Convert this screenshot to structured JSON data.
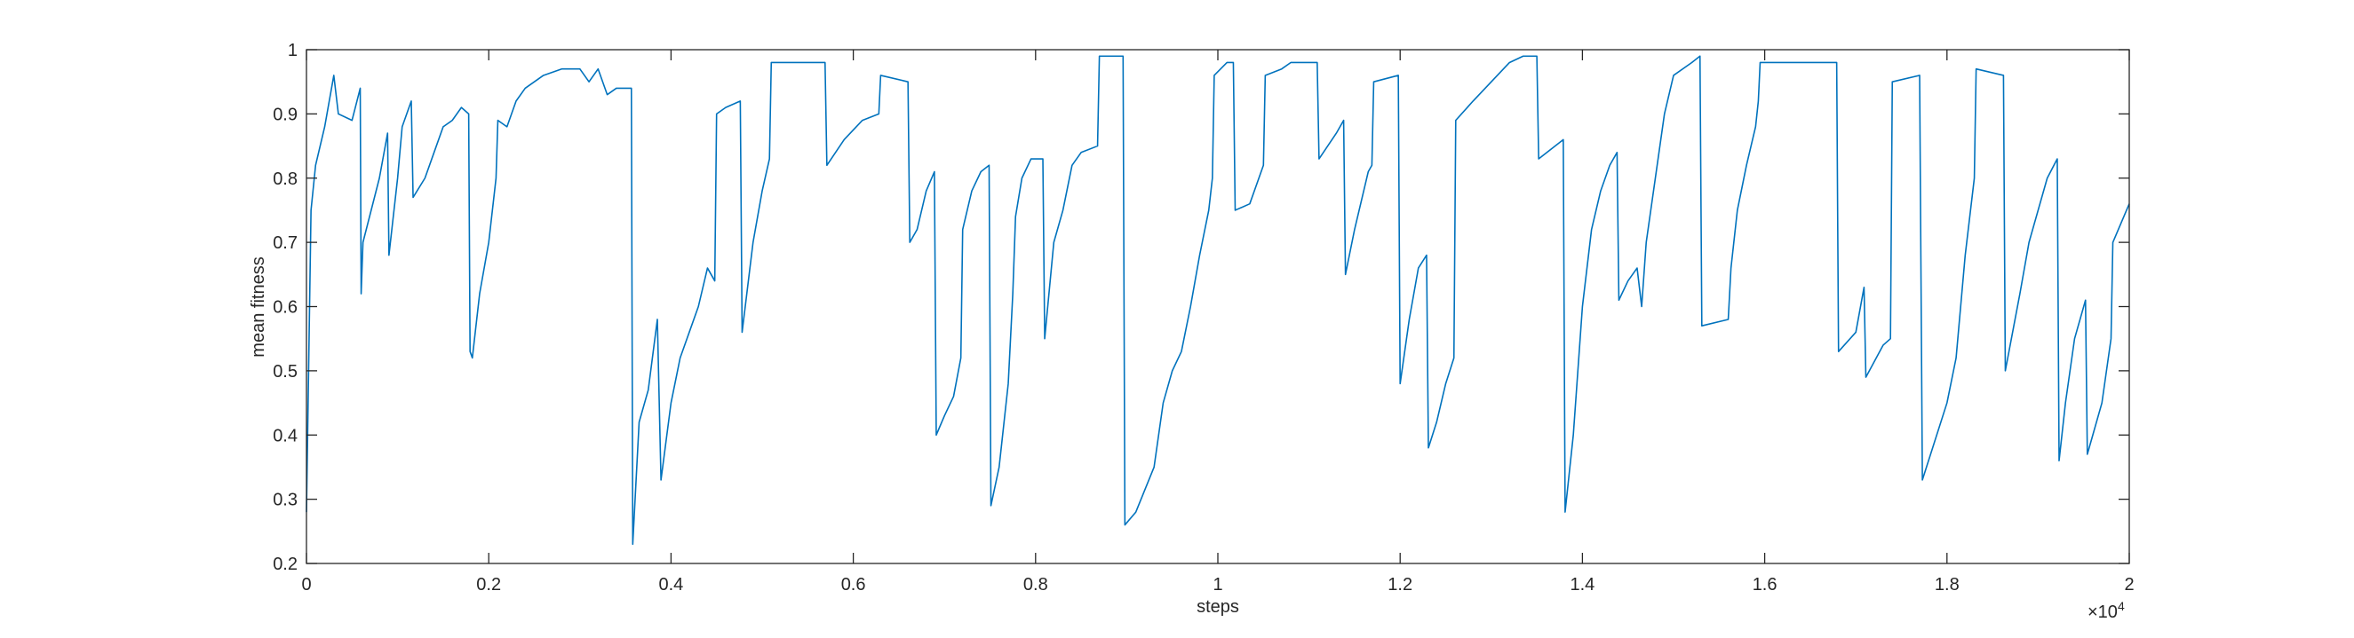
{
  "chart_data": {
    "type": "line",
    "x_label": "steps",
    "y_label": "mean fitness",
    "x_multiplier": {
      "base": "×10",
      "exponent": "4"
    },
    "xlim": [
      0,
      20000
    ],
    "ylim": [
      0.2,
      1
    ],
    "xticks": [
      {
        "value": 0,
        "label": "0"
      },
      {
        "value": 2000,
        "label": "0.2"
      },
      {
        "value": 4000,
        "label": "0.4"
      },
      {
        "value": 6000,
        "label": "0.6"
      },
      {
        "value": 8000,
        "label": "0.8"
      },
      {
        "value": 10000,
        "label": "1"
      },
      {
        "value": 12000,
        "label": "1.2"
      },
      {
        "value": 14000,
        "label": "1.4"
      },
      {
        "value": 16000,
        "label": "1.6"
      },
      {
        "value": 18000,
        "label": "1.8"
      },
      {
        "value": 20000,
        "label": "2"
      }
    ],
    "yticks": [
      0.2,
      0.3,
      0.4,
      0.5,
      0.6,
      0.7,
      0.8,
      0.9,
      1
    ],
    "grid": false,
    "x": [
      0,
      50,
      100,
      200,
      300,
      350,
      500,
      590,
      600,
      620,
      800,
      890,
      905,
      1000,
      1050,
      1150,
      1170,
      1300,
      1400,
      1500,
      1600,
      1700,
      1780,
      1795,
      1820,
      1900,
      2000,
      2080,
      2100,
      2200,
      2300,
      2400,
      2600,
      2800,
      3000,
      3100,
      3200,
      3300,
      3400,
      3565,
      3580,
      3650,
      3750,
      3850,
      3890,
      4000,
      4100,
      4200,
      4300,
      4400,
      4480,
      4500,
      4600,
      4760,
      4780,
      4900,
      5000,
      5080,
      5100,
      5300,
      5500,
      5690,
      5710,
      5900,
      6100,
      6280,
      6300,
      6600,
      6620,
      6700,
      6800,
      6890,
      6910,
      7000,
      7100,
      7180,
      7200,
      7300,
      7400,
      7490,
      7510,
      7600,
      7700,
      7750,
      7780,
      7850,
      7950,
      8080,
      8100,
      8200,
      8300,
      8400,
      8500,
      8680,
      8700,
      8960,
      8980,
      9100,
      9300,
      9400,
      9500,
      9600,
      9700,
      9800,
      9900,
      9940,
      9960,
      10100,
      10170,
      10190,
      10350,
      10450,
      10500,
      10520,
      10700,
      10800,
      11090,
      11110,
      11300,
      11380,
      11400,
      11500,
      11650,
      11690,
      11710,
      11980,
      12000,
      12100,
      12200,
      12290,
      12310,
      12400,
      12500,
      12590,
      12610,
      12800,
      13000,
      13200,
      13350,
      13500,
      13520,
      13790,
      13810,
      13900,
      14000,
      14100,
      14200,
      14300,
      14380,
      14400,
      14500,
      14600,
      14650,
      14700,
      14800,
      14900,
      15000,
      15200,
      15290,
      15310,
      15600,
      15630,
      15700,
      15800,
      15900,
      15930,
      15950,
      16200,
      16500,
      16790,
      16810,
      17000,
      17090,
      17110,
      17300,
      17380,
      17400,
      17700,
      17730,
      18000,
      18100,
      18200,
      18300,
      18320,
      18620,
      18640,
      18800,
      18900,
      19000,
      19100,
      19210,
      19230,
      19300,
      19400,
      19520,
      19540,
      19600,
      19700,
      19800,
      19820,
      20000
    ],
    "series": [
      {
        "color": "#0072bd",
        "values": [
          0.28,
          0.75,
          0.82,
          0.88,
          0.96,
          0.9,
          0.89,
          0.94,
          0.62,
          0.7,
          0.8,
          0.87,
          0.68,
          0.8,
          0.88,
          0.92,
          0.77,
          0.8,
          0.84,
          0.88,
          0.89,
          0.91,
          0.9,
          0.53,
          0.52,
          0.62,
          0.7,
          0.8,
          0.89,
          0.88,
          0.92,
          0.94,
          0.96,
          0.97,
          0.97,
          0.95,
          0.97,
          0.93,
          0.94,
          0.94,
          0.23,
          0.42,
          0.47,
          0.58,
          0.33,
          0.45,
          0.52,
          0.56,
          0.6,
          0.66,
          0.64,
          0.9,
          0.91,
          0.92,
          0.56,
          0.7,
          0.78,
          0.83,
          0.98,
          0.98,
          0.98,
          0.98,
          0.82,
          0.86,
          0.89,
          0.9,
          0.96,
          0.95,
          0.7,
          0.72,
          0.78,
          0.81,
          0.4,
          0.43,
          0.46,
          0.52,
          0.72,
          0.78,
          0.81,
          0.82,
          0.29,
          0.35,
          0.48,
          0.62,
          0.74,
          0.8,
          0.83,
          0.83,
          0.55,
          0.7,
          0.75,
          0.82,
          0.84,
          0.85,
          0.99,
          0.99,
          0.26,
          0.28,
          0.35,
          0.45,
          0.5,
          0.53,
          0.6,
          0.68,
          0.75,
          0.8,
          0.96,
          0.98,
          0.98,
          0.75,
          0.76,
          0.8,
          0.82,
          0.96,
          0.97,
          0.98,
          0.98,
          0.83,
          0.87,
          0.89,
          0.65,
          0.72,
          0.81,
          0.82,
          0.95,
          0.96,
          0.48,
          0.58,
          0.66,
          0.68,
          0.38,
          0.42,
          0.48,
          0.52,
          0.89,
          0.92,
          0.95,
          0.98,
          0.99,
          0.99,
          0.83,
          0.86,
          0.28,
          0.4,
          0.6,
          0.72,
          0.78,
          0.82,
          0.84,
          0.61,
          0.64,
          0.66,
          0.6,
          0.7,
          0.8,
          0.9,
          0.96,
          0.98,
          0.99,
          0.57,
          0.58,
          0.66,
          0.75,
          0.82,
          0.88,
          0.92,
          0.98,
          0.98,
          0.98,
          0.98,
          0.53,
          0.56,
          0.63,
          0.49,
          0.54,
          0.55,
          0.95,
          0.96,
          0.33,
          0.45,
          0.52,
          0.68,
          0.8,
          0.97,
          0.96,
          0.5,
          0.62,
          0.7,
          0.75,
          0.8,
          0.83,
          0.36,
          0.45,
          0.55,
          0.61,
          0.37,
          0.4,
          0.45,
          0.55,
          0.7,
          0.76
        ]
      }
    ]
  }
}
